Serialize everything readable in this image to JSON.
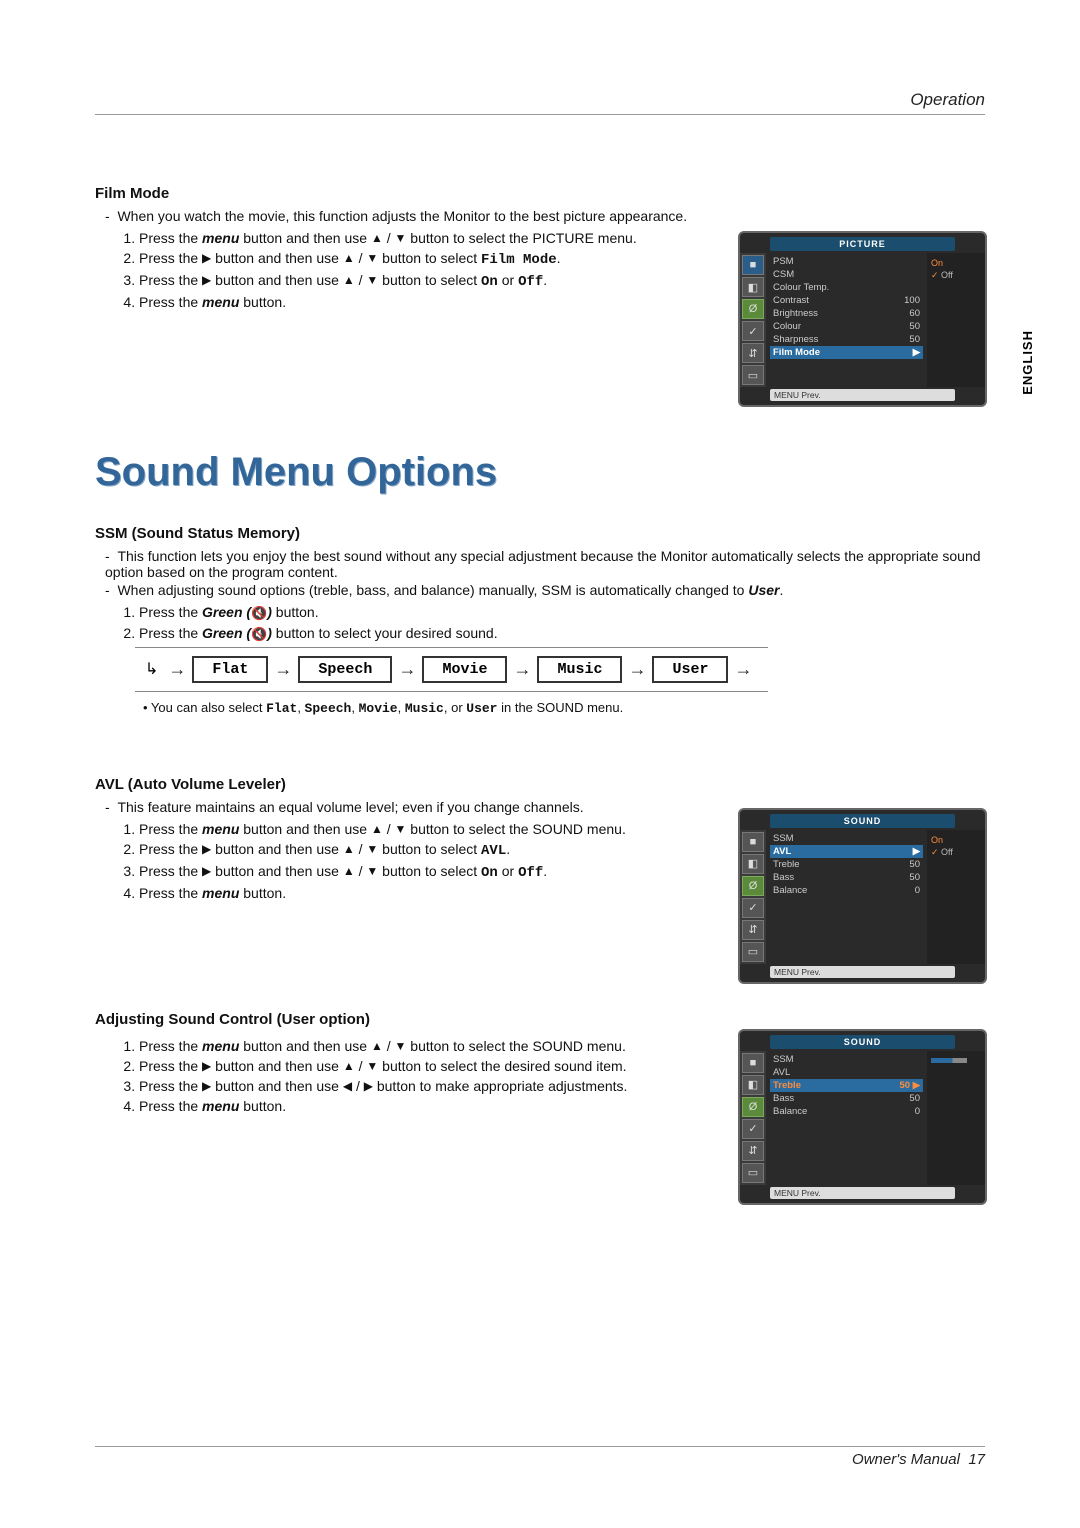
{
  "header": {
    "section": "Operation"
  },
  "lang_tab": "ENGLISH",
  "footer": {
    "label": "Owner's Manual",
    "page": "17"
  },
  "film_mode": {
    "title": "Film Mode",
    "intro_prefix": "-",
    "intro": "When you watch the movie, this function adjusts the Monitor to the best picture appearance.",
    "steps": [
      {
        "pre": "Press the ",
        "bold": "menu",
        "mid": " button and then use ",
        "g1": "▲",
        "g2": "▼",
        "post": " button to select the PICTURE menu."
      },
      {
        "pre": "Press the ",
        "g0": "▶",
        "mid": " button and then use ",
        "g1": "▲",
        "g2": "▼",
        "post2": " button to select ",
        "mono": "Film Mode",
        "end": "."
      },
      {
        "pre": "Press the ",
        "g0": "▶",
        "mid": " button and then use ",
        "g1": "▲",
        "g2": "▼",
        "post2": " button to select ",
        "mono": "On",
        "or": " or ",
        "mono2": "Off",
        "end": "."
      },
      {
        "pre": "Press the ",
        "bold": "menu",
        "post": " button."
      }
    ]
  },
  "sound_heading": "Sound Menu Options",
  "ssm": {
    "title": "SSM (Sound Status Memory)",
    "bullets": [
      "This function lets you enjoy the best sound without any special adjustment because the Monitor automatically selects the appropriate sound option based on the program content.",
      "When adjusting sound options (treble, bass, and balance) manually, SSM is automatically changed to "
    ],
    "user_word": "User",
    "steps": [
      {
        "pre": "Press the ",
        "bold": "Green (",
        "glyph": "🔇",
        "boldclose": ")",
        "post": " button."
      },
      {
        "pre": "Press the ",
        "bold": "Green (",
        "glyph": "🔇",
        "boldclose": ")",
        "post": " button to select your desired sound."
      }
    ],
    "flow": [
      "Flat",
      "Speech",
      "Movie",
      "Music",
      "User"
    ],
    "note_pre": "• You can also select ",
    "note_items": [
      "Flat",
      "Speech",
      "Movie",
      "Music",
      "User"
    ],
    "note_post": " in the SOUND menu."
  },
  "avl": {
    "title": "AVL (Auto Volume Leveler)",
    "intro_prefix": "-",
    "intro": "This feature maintains an equal volume level; even if you change channels.",
    "steps": [
      {
        "pre": "Press the ",
        "bold": "menu",
        "mid": " button and then use ",
        "g1": "▲",
        "g2": "▼",
        "post": " button to select the SOUND menu."
      },
      {
        "pre": "Press the ",
        "g0": "▶",
        "mid": " button and then use ",
        "g1": "▲",
        "g2": "▼",
        "post2": " button to select ",
        "mono": "AVL",
        "end": "."
      },
      {
        "pre": "Press the ",
        "g0": "▶",
        "mid": " button and then use ",
        "g1": "▲",
        "g2": "▼",
        "post2": " button to select ",
        "mono": "On",
        "or": " or ",
        "mono2": "Off",
        "end": "."
      },
      {
        "pre": "Press the ",
        "bold": "menu",
        "post": " button."
      }
    ]
  },
  "adjust": {
    "title": "Adjusting Sound Control (User option)",
    "steps": [
      {
        "pre": "Press the ",
        "bold": "menu",
        "mid": " button and then use ",
        "g1": "▲",
        "g2": "▼",
        "post": " button to select the SOUND menu."
      },
      {
        "pre": "Press the ",
        "g0": "▶",
        "mid": " button and then use ",
        "g1": "▲",
        "g2": "▼",
        "post": " button to select the desired sound item."
      },
      {
        "pre": "Press the ",
        "g0": "▶",
        "mid": " button and then use ",
        "g1": "◀",
        "g2": "▶",
        "post": " button to make appropriate adjustments."
      },
      {
        "pre": "Press the ",
        "bold": "menu",
        "post": " button."
      }
    ]
  },
  "osd_picture": {
    "header": "PICTURE",
    "rows": [
      {
        "label": "PSM",
        "value": ""
      },
      {
        "label": "CSM",
        "value": ""
      },
      {
        "label": "Colour Temp.",
        "value": ""
      },
      {
        "label": "Contrast",
        "value": "100"
      },
      {
        "label": "Brightness",
        "value": "60"
      },
      {
        "label": "Colour",
        "value": "50"
      },
      {
        "label": "Sharpness",
        "value": "50"
      },
      {
        "label": "Film Mode",
        "value": "▶",
        "hl": true
      }
    ],
    "options": [
      {
        "label": "On",
        "on": true
      },
      {
        "label": "Off",
        "sel": true
      }
    ],
    "footer": "MENU  Prev."
  },
  "osd_sound_avl": {
    "header": "SOUND",
    "rows": [
      {
        "label": "SSM",
        "value": ""
      },
      {
        "label": "AVL",
        "value": "▶",
        "hl": true
      },
      {
        "label": "Treble",
        "value": "50"
      },
      {
        "label": "Bass",
        "value": "50"
      },
      {
        "label": "Balance",
        "value": "0"
      }
    ],
    "options": [
      {
        "label": "On",
        "on": true
      },
      {
        "label": "Off",
        "sel": true
      }
    ],
    "footer": "MENU  Prev."
  },
  "osd_sound_treble": {
    "header": "SOUND",
    "rows": [
      {
        "label": "SSM",
        "value": ""
      },
      {
        "label": "AVL",
        "value": ""
      },
      {
        "label": "Treble",
        "value": "50 ▶",
        "hl": true,
        "orange": true
      },
      {
        "label": "Bass",
        "value": "50"
      },
      {
        "label": "Balance",
        "value": "0"
      }
    ],
    "slider": true,
    "footer": "MENU  Prev."
  }
}
